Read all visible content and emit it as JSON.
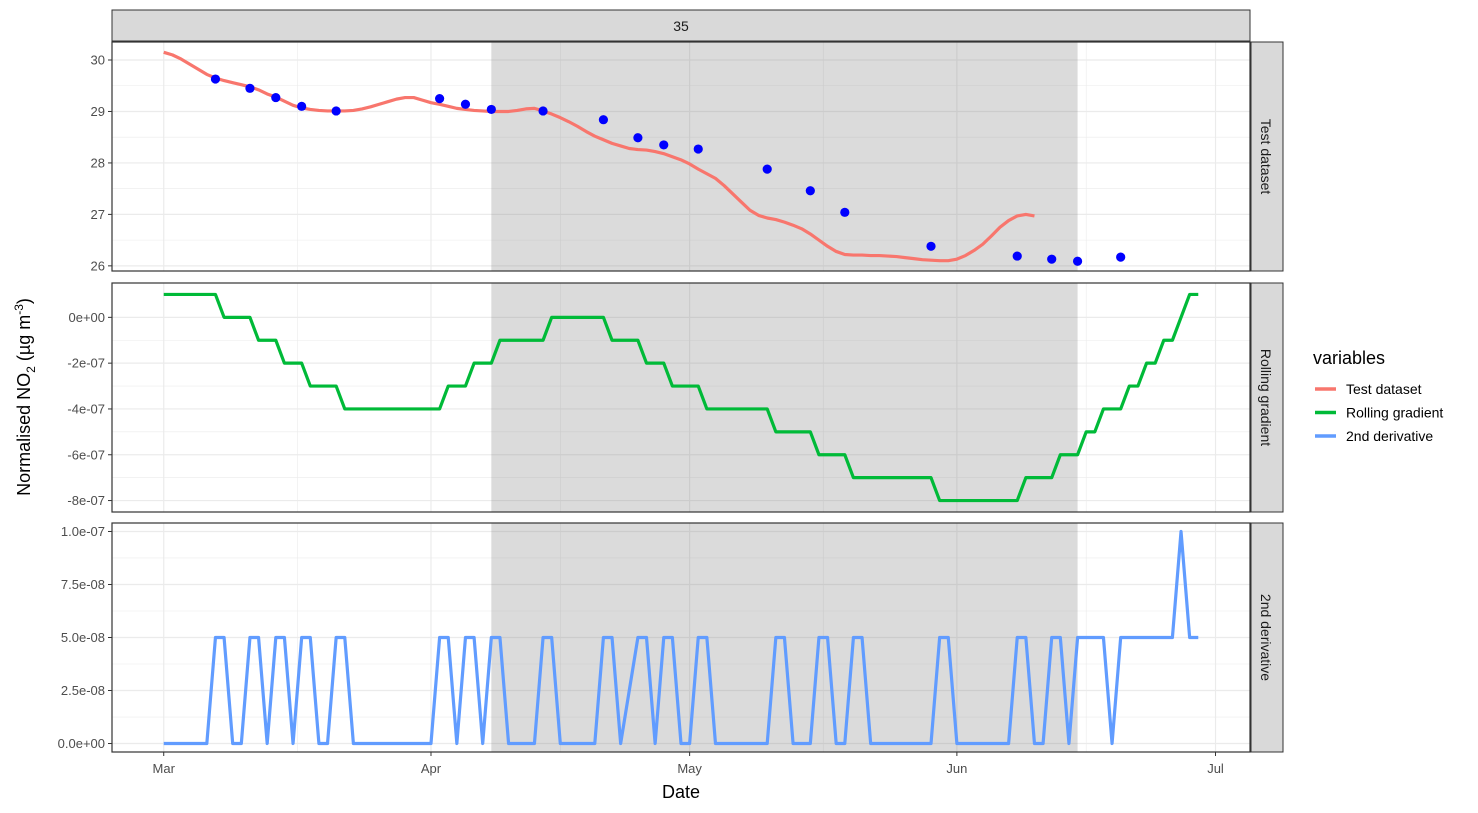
{
  "chart_data": {
    "type": "line",
    "facet_title": "35",
    "xlabel": "Date",
    "ylabel_prefix": "Normalised NO",
    "ylabel_sub": "2",
    "ylabel_mid": " (µg m",
    "ylabel_sup": "-3",
    "ylabel_end": ")",
    "x_ticks": [
      {
        "label": "Mar",
        "day": 0
      },
      {
        "label": "Apr",
        "day": 31
      },
      {
        "label": "May",
        "day": 61
      },
      {
        "label": "Jun",
        "day": 92
      },
      {
        "label": "Jul",
        "day": 122
      }
    ],
    "xlim_days": [
      -6,
      126
    ],
    "shaded_region_days": [
      38,
      106
    ],
    "legend": {
      "title": "variables",
      "placement": "right",
      "items": [
        {
          "label": "Test dataset",
          "color": "#F8766D"
        },
        {
          "label": "Rolling gradient",
          "color": "#00BA38"
        },
        {
          "label": "2nd derivative",
          "color": "#619CFF"
        }
      ]
    },
    "panels": [
      {
        "strip": "Test dataset",
        "color": "#F8766D",
        "ylim": [
          25.9,
          30.35
        ],
        "ticks": [
          {
            "v": 26,
            "label": "26"
          },
          {
            "v": 27,
            "label": "27"
          },
          {
            "v": 28,
            "label": "28"
          },
          {
            "v": 29,
            "label": "29"
          },
          {
            "v": 30,
            "label": "30"
          }
        ],
        "minor": [
          26.5,
          27.5,
          28.5,
          29.5
        ],
        "line": [
          [
            0,
            30.15
          ],
          [
            1,
            30.1
          ],
          [
            2,
            30.02
          ],
          [
            3,
            29.92
          ],
          [
            4,
            29.82
          ],
          [
            5,
            29.72
          ],
          [
            6,
            29.65
          ],
          [
            7,
            29.6
          ],
          [
            8,
            29.56
          ],
          [
            9,
            29.52
          ],
          [
            10,
            29.48
          ],
          [
            11,
            29.42
          ],
          [
            12,
            29.34
          ],
          [
            13,
            29.28
          ],
          [
            14,
            29.2
          ],
          [
            15,
            29.12
          ],
          [
            16,
            29.07
          ],
          [
            17,
            29.04
          ],
          [
            18,
            29.02
          ],
          [
            19,
            29.01
          ],
          [
            20,
            29.01
          ],
          [
            21,
            29.01
          ],
          [
            22,
            29.02
          ],
          [
            23,
            29.05
          ],
          [
            24,
            29.09
          ],
          [
            25,
            29.14
          ],
          [
            26,
            29.19
          ],
          [
            27,
            29.24
          ],
          [
            28,
            29.27
          ],
          [
            29,
            29.27
          ],
          [
            30,
            29.22
          ],
          [
            31,
            29.17
          ],
          [
            32,
            29.14
          ],
          [
            33,
            29.1
          ],
          [
            34,
            29.06
          ],
          [
            35,
            29.04
          ],
          [
            36,
            29.02
          ],
          [
            37,
            29.01
          ],
          [
            38,
            29.0
          ],
          [
            39,
            29.0
          ],
          [
            40,
            29.0
          ],
          [
            41,
            29.02
          ],
          [
            42,
            29.05
          ],
          [
            43,
            29.06
          ],
          [
            44,
            29.01
          ],
          [
            45,
            28.95
          ],
          [
            46,
            28.88
          ],
          [
            47,
            28.8
          ],
          [
            48,
            28.71
          ],
          [
            49,
            28.61
          ],
          [
            50,
            28.52
          ],
          [
            51,
            28.45
          ],
          [
            52,
            28.38
          ],
          [
            53,
            28.33
          ],
          [
            54,
            28.28
          ],
          [
            55,
            28.26
          ],
          [
            56,
            28.25
          ],
          [
            57,
            28.22
          ],
          [
            58,
            28.18
          ],
          [
            59,
            28.12
          ],
          [
            60,
            28.06
          ],
          [
            61,
            27.98
          ],
          [
            62,
            27.88
          ],
          [
            63,
            27.79
          ],
          [
            64,
            27.7
          ],
          [
            65,
            27.56
          ],
          [
            66,
            27.4
          ],
          [
            67,
            27.24
          ],
          [
            68,
            27.08
          ],
          [
            69,
            26.98
          ],
          [
            70,
            26.93
          ],
          [
            71,
            26.9
          ],
          [
            72,
            26.85
          ],
          [
            73,
            26.79
          ],
          [
            74,
            26.72
          ],
          [
            75,
            26.62
          ],
          [
            76,
            26.5
          ],
          [
            77,
            26.38
          ],
          [
            78,
            26.28
          ],
          [
            79,
            26.22
          ],
          [
            80,
            26.21
          ],
          [
            81,
            26.21
          ],
          [
            82,
            26.2
          ],
          [
            83,
            26.2
          ],
          [
            84,
            26.19
          ],
          [
            85,
            26.18
          ],
          [
            86,
            26.16
          ],
          [
            87,
            26.14
          ],
          [
            88,
            26.12
          ],
          [
            89,
            26.11
          ],
          [
            90,
            26.1
          ],
          [
            91,
            26.1
          ],
          [
            92,
            26.13
          ],
          [
            93,
            26.2
          ],
          [
            94,
            26.3
          ],
          [
            95,
            26.42
          ],
          [
            96,
            26.58
          ],
          [
            97,
            26.75
          ],
          [
            98,
            26.88
          ],
          [
            99,
            26.97
          ],
          [
            100,
            27.0
          ],
          [
            101,
            26.97
          ]
        ],
        "points": [
          [
            6,
            29.63
          ],
          [
            10,
            29.45
          ],
          [
            13,
            29.27
          ],
          [
            16,
            29.1
          ],
          [
            20,
            29.01
          ],
          [
            32,
            29.25
          ],
          [
            35,
            29.14
          ],
          [
            38,
            29.04
          ],
          [
            44,
            29.01
          ],
          [
            51,
            28.84
          ],
          [
            55,
            28.49
          ],
          [
            58,
            28.35
          ],
          [
            62,
            28.27
          ],
          [
            70,
            27.88
          ],
          [
            75,
            27.46
          ],
          [
            79,
            27.04
          ],
          [
            89,
            26.38
          ],
          [
            99,
            26.19
          ],
          [
            103,
            26.13
          ],
          [
            106,
            26.09
          ],
          [
            111,
            26.17
          ]
        ],
        "point_color": "#0000FF"
      },
      {
        "strip": "Rolling gradient",
        "color": "#00BA38",
        "ylim": [
          -8.5e-07,
          1.5e-07
        ],
        "ticks": [
          {
            "v": 0,
            "label": "0e+00"
          },
          {
            "v": -2e-07,
            "label": "-2e-07"
          },
          {
            "v": -4e-07,
            "label": "-4e-07"
          },
          {
            "v": -6e-07,
            "label": "-6e-07"
          },
          {
            "v": -8e-07,
            "label": "-8e-07"
          }
        ],
        "minor": [
          -1e-07,
          -3e-07,
          -5e-07,
          -7e-07
        ],
        "line": [
          [
            0,
            1e-07
          ],
          [
            6,
            1e-07
          ],
          [
            7,
            0
          ],
          [
            10,
            0
          ],
          [
            11,
            -1e-07
          ],
          [
            13,
            -1e-07
          ],
          [
            14,
            -2e-07
          ],
          [
            16,
            -2e-07
          ],
          [
            17,
            -3e-07
          ],
          [
            20,
            -3e-07
          ],
          [
            21,
            -4e-07
          ],
          [
            32,
            -4e-07
          ],
          [
            33,
            -3e-07
          ],
          [
            35,
            -3e-07
          ],
          [
            36,
            -2e-07
          ],
          [
            38,
            -2e-07
          ],
          [
            39,
            -1e-07
          ],
          [
            44,
            -1e-07
          ],
          [
            45,
            0
          ],
          [
            51,
            0
          ],
          [
            52,
            -1e-07
          ],
          [
            55,
            -1e-07
          ],
          [
            56,
            -2e-07
          ],
          [
            58,
            -2e-07
          ],
          [
            59,
            -3e-07
          ],
          [
            62,
            -3e-07
          ],
          [
            63,
            -4e-07
          ],
          [
            70,
            -4e-07
          ],
          [
            71,
            -5e-07
          ],
          [
            75,
            -5e-07
          ],
          [
            76,
            -6e-07
          ],
          [
            79,
            -6e-07
          ],
          [
            80,
            -7e-07
          ],
          [
            89,
            -7e-07
          ],
          [
            90,
            -8e-07
          ],
          [
            99,
            -8e-07
          ],
          [
            100,
            -7e-07
          ],
          [
            103,
            -7e-07
          ],
          [
            104,
            -6e-07
          ],
          [
            106,
            -6e-07
          ],
          [
            107,
            -5e-07
          ],
          [
            108,
            -5e-07
          ],
          [
            109,
            -4e-07
          ],
          [
            111,
            -4e-07
          ],
          [
            112,
            -3e-07
          ],
          [
            113,
            -3e-07
          ],
          [
            114,
            -2e-07
          ],
          [
            115,
            -2e-07
          ],
          [
            116,
            -1e-07
          ],
          [
            117,
            -1e-07
          ],
          [
            119,
            1e-07
          ],
          [
            120,
            1e-07
          ]
        ]
      },
      {
        "strip": "2nd derivative",
        "color": "#619CFF",
        "ylim": [
          -4e-09,
          1.04e-07
        ],
        "ticks": [
          {
            "v": 0,
            "label": "0.0e+00"
          },
          {
            "v": 2.5e-08,
            "label": "2.5e-08"
          },
          {
            "v": 5e-08,
            "label": "5.0e-08"
          },
          {
            "v": 7.5e-08,
            "label": "7.5e-08"
          },
          {
            "v": 1e-07,
            "label": "1.0e-07"
          }
        ],
        "minor": [
          1.25e-08,
          3.75e-08,
          6.25e-08,
          8.75e-08
        ],
        "line": [
          [
            0,
            0
          ],
          [
            5,
            0
          ],
          [
            6,
            5e-08
          ],
          [
            7,
            5e-08
          ],
          [
            8,
            0
          ],
          [
            9,
            0
          ],
          [
            10,
            5e-08
          ],
          [
            11,
            5e-08
          ],
          [
            12,
            0
          ],
          [
            13,
            5e-08
          ],
          [
            14,
            5e-08
          ],
          [
            15,
            0
          ],
          [
            16,
            5e-08
          ],
          [
            17,
            5e-08
          ],
          [
            18,
            0
          ],
          [
            19,
            0
          ],
          [
            20,
            5e-08
          ],
          [
            21,
            5e-08
          ],
          [
            22,
            0
          ],
          [
            31,
            0
          ],
          [
            32,
            5e-08
          ],
          [
            33,
            5e-08
          ],
          [
            34,
            0
          ],
          [
            35,
            5e-08
          ],
          [
            36,
            5e-08
          ],
          [
            37,
            0
          ],
          [
            38,
            5e-08
          ],
          [
            39,
            5e-08
          ],
          [
            40,
            0
          ],
          [
            43,
            0
          ],
          [
            44,
            5e-08
          ],
          [
            45,
            5e-08
          ],
          [
            46,
            0
          ],
          [
            50,
            0
          ],
          [
            51,
            5e-08
          ],
          [
            52,
            5e-08
          ],
          [
            53,
            0
          ],
          [
            55,
            5e-08
          ],
          [
            56,
            5e-08
          ],
          [
            57,
            0
          ],
          [
            58,
            5e-08
          ],
          [
            59,
            5e-08
          ],
          [
            60,
            0
          ],
          [
            61,
            0
          ],
          [
            62,
            5e-08
          ],
          [
            63,
            5e-08
          ],
          [
            64,
            0
          ],
          [
            70,
            0
          ],
          [
            71,
            5e-08
          ],
          [
            72,
            5e-08
          ],
          [
            73,
            0
          ],
          [
            75,
            0
          ],
          [
            76,
            5e-08
          ],
          [
            77,
            5e-08
          ],
          [
            78,
            0
          ],
          [
            79,
            0
          ],
          [
            80,
            5e-08
          ],
          [
            81,
            5e-08
          ],
          [
            82,
            0
          ],
          [
            89,
            0
          ],
          [
            90,
            5e-08
          ],
          [
            91,
            5e-08
          ],
          [
            92,
            0
          ],
          [
            98,
            0
          ],
          [
            99,
            5e-08
          ],
          [
            100,
            5e-08
          ],
          [
            101,
            0
          ],
          [
            102,
            0
          ],
          [
            103,
            5e-08
          ],
          [
            104,
            5e-08
          ],
          [
            105,
            0
          ],
          [
            106,
            5e-08
          ],
          [
            109,
            5e-08
          ],
          [
            110,
            0
          ],
          [
            111,
            5e-08
          ],
          [
            117,
            5e-08
          ],
          [
            118,
            1e-07
          ],
          [
            119,
            5e-08
          ],
          [
            120,
            5e-08
          ]
        ]
      }
    ]
  }
}
